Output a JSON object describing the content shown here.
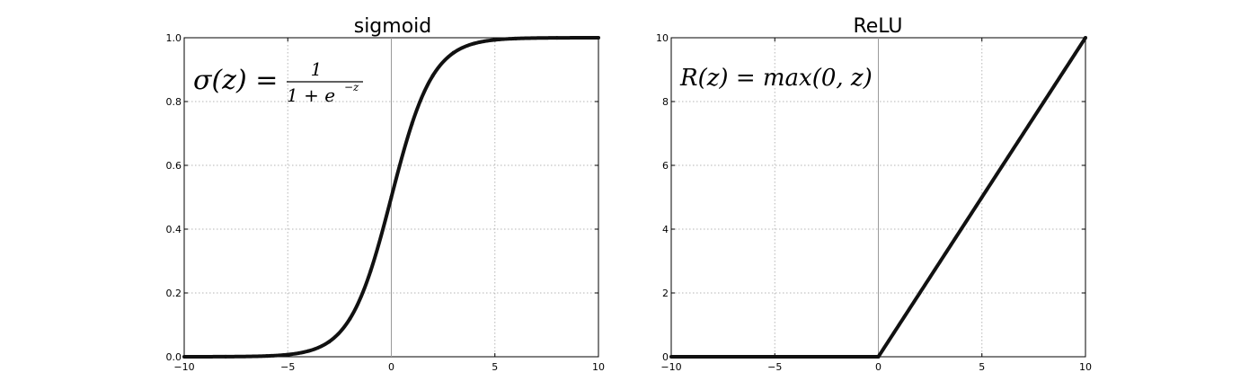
{
  "chart_data": [
    {
      "type": "line",
      "title": "sigmoid",
      "function": "sigmoid",
      "xlim": [
        -10,
        10
      ],
      "ylim": [
        0,
        1
      ],
      "xticks": [
        -10,
        -5,
        0,
        5,
        10
      ],
      "xtick_labels": [
        "−10",
        "−5",
        "0",
        "5",
        "10"
      ],
      "yticks": [
        0,
        0.2,
        0.4,
        0.6,
        0.8,
        1.0
      ],
      "ytick_labels": [
        "0.0",
        "0.2",
        "0.4",
        "0.6",
        "0.8",
        "1.0"
      ],
      "grid": true,
      "x": [
        -10,
        -8,
        -6,
        -5,
        -4,
        -3,
        -2,
        -1,
        0,
        1,
        2,
        3,
        4,
        5,
        6,
        8,
        10
      ],
      "y": [
        4.54e-05,
        0.000335,
        0.00247,
        0.0067,
        0.018,
        0.047,
        0.119,
        0.269,
        0.5,
        0.731,
        0.881,
        0.953,
        0.982,
        0.9933,
        0.9975,
        0.99966,
        0.99995
      ],
      "line_color": "#111111",
      "annotation": {
        "lhs": "σ(z) =",
        "numerator": "1",
        "denominator": "1 + e",
        "exponent": "−z"
      }
    },
    {
      "type": "line",
      "title": "ReLU",
      "function": "relu",
      "xlim": [
        -10,
        10
      ],
      "ylim": [
        0,
        10
      ],
      "xticks": [
        -10,
        -5,
        0,
        5,
        10
      ],
      "xtick_labels": [
        "−10",
        "−5",
        "0",
        "5",
        "10"
      ],
      "yticks": [
        0,
        2,
        4,
        6,
        8,
        10
      ],
      "ytick_labels": [
        "0",
        "2",
        "4",
        "6",
        "8",
        "10"
      ],
      "grid": true,
      "x": [
        -10,
        0,
        10
      ],
      "y": [
        0,
        0,
        10
      ],
      "line_color": "#111111",
      "annotation": {
        "text": "R(z) = max(0,  z)"
      }
    }
  ]
}
